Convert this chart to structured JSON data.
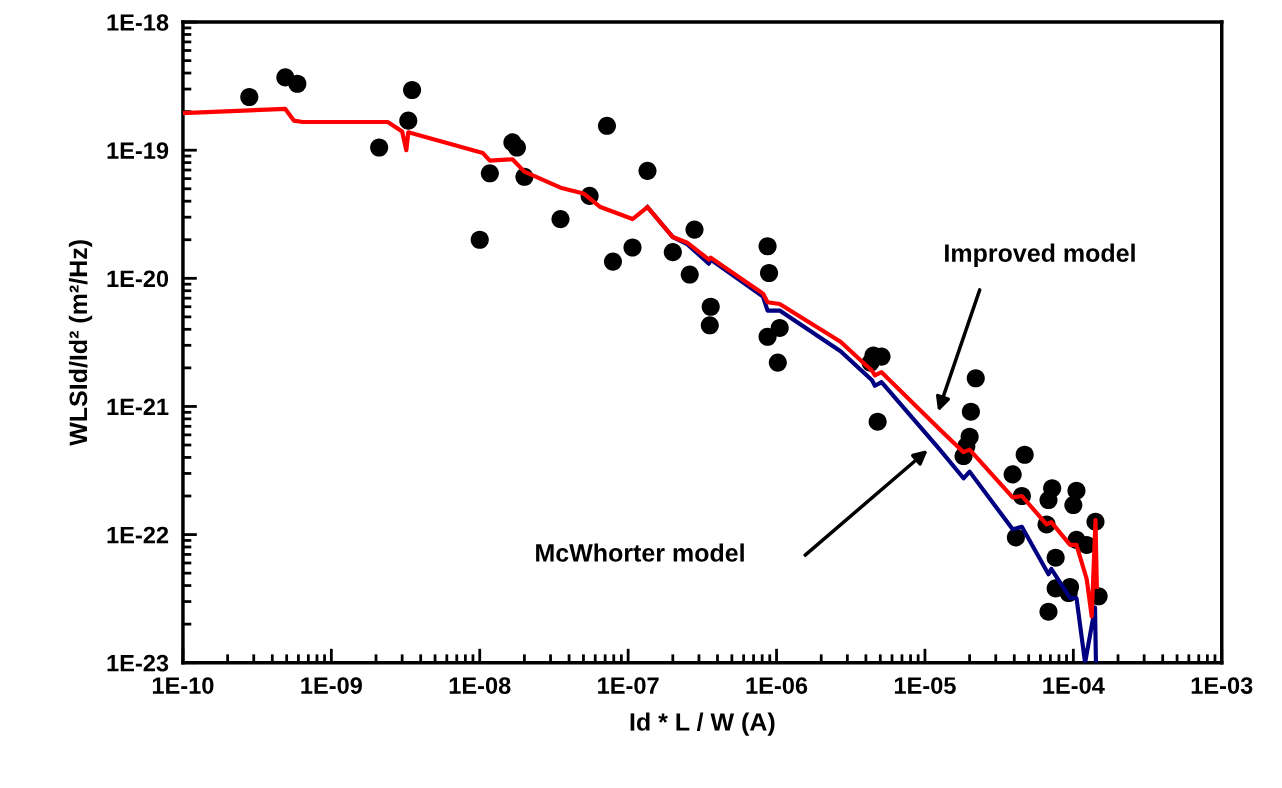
{
  "chart_data": {
    "type": "line",
    "xlabel": "Id * L / W (A)",
    "ylabel": "WLSId/Id² (m²/Hz)",
    "log": "xy",
    "grid": false,
    "legend": false,
    "xlim": [
      1e-10,
      0.001
    ],
    "ylim": [
      1e-23,
      1e-18
    ],
    "xticks": [
      {
        "value": 1e-10,
        "label": "1E-10"
      },
      {
        "value": 1e-09,
        "label": "1E-09"
      },
      {
        "value": 1e-08,
        "label": "1E-08"
      },
      {
        "value": 1e-07,
        "label": "1E-07"
      },
      {
        "value": 1e-06,
        "label": "1E-06"
      },
      {
        "value": 1e-05,
        "label": "1E-05"
      },
      {
        "value": 0.0001,
        "label": "1E-04"
      },
      {
        "value": 0.001,
        "label": "1E-03"
      }
    ],
    "yticks": [
      {
        "value": 1e-23,
        "label": "1E-23"
      },
      {
        "value": 1e-22,
        "label": "1E-22"
      },
      {
        "value": 1e-21,
        "label": "1E-21"
      },
      {
        "value": 1e-20,
        "label": "1E-20"
      },
      {
        "value": 1e-19,
        "label": "1E-19"
      },
      {
        "value": 1e-18,
        "label": "1E-18"
      }
    ],
    "series": [
      {
        "type": "scatter",
        "color": "#000000",
        "marker": "circle",
        "x": [
          2.8e-10,
          4.9e-10,
          5.9e-10,
          2.1e-09,
          3.3e-09,
          3.5e-09,
          1e-08,
          1.17e-08,
          1.66e-08,
          1.78e-08,
          2e-08,
          3.5e-08,
          5.5e-08,
          7.2e-08,
          7.9e-08,
          1.07e-07,
          1.35e-07,
          2e-07,
          2.6e-07,
          2.8e-07,
          3.6e-07,
          3.55e-07,
          8.7e-07,
          8.9e-07,
          8.7e-07,
          1.05e-06,
          1.02e-06,
          4.3e-06,
          4.5e-06,
          5.1e-06,
          4.8e-06,
          2.2e-05,
          2.04e-05,
          2e-05,
          1.9e-05,
          1.82e-05,
          4.7e-05,
          3.9e-05,
          4.5e-05,
          4.1e-05,
          7.2e-05,
          6.8e-05,
          6.6e-05,
          7.6e-05,
          7.6e-05,
          6.8e-05,
          9.5e-05,
          9.3e-05,
          0.000105,
          0.0001,
          0.000105,
          0.000123,
          0.000141,
          0.000148
        ],
        "values": [
          2.6e-19,
          3.7e-19,
          3.3e-19,
          1.05e-19,
          1.7e-19,
          2.95e-19,
          2e-20,
          6.6e-20,
          1.15e-19,
          1.05e-19,
          6.2e-20,
          2.9e-20,
          4.4e-20,
          1.55e-19,
          1.35e-20,
          1.74e-20,
          6.9e-20,
          1.6e-20,
          1.07e-20,
          2.4e-20,
          6e-21,
          4.3e-21,
          1.78e-20,
          1.1e-20,
          3.5e-21,
          4.1e-21,
          2.2e-21,
          2.2e-21,
          2.5e-21,
          2.45e-21,
          7.6e-22,
          1.66e-21,
          9.1e-22,
          5.8e-22,
          4.9e-22,
          4.1e-22,
          4.2e-22,
          2.95e-22,
          2e-22,
          9.5e-23,
          2.3e-22,
          1.86e-22,
          1.2e-22,
          6.6e-23,
          3.8e-23,
          2.5e-23,
          3.9e-23,
          3.5e-23,
          2.2e-22,
          1.7e-22,
          9.1e-23,
          8.3e-23,
          1.26e-22,
          3.3e-23
        ]
      },
      {
        "color": "#000080",
        "marker": "none",
        "line_style": "solid",
        "x": [
          1.35e-07,
          2e-07,
          2.5e-07,
          3.5e-07,
          3.6e-07,
          8.1e-07,
          8.7e-07,
          1.05e-06,
          2.7e-06,
          4.4e-06,
          4.6e-06,
          5.1e-06,
          1.26e-05,
          1.82e-05,
          2e-05,
          3.9e-05,
          4.5e-05,
          6.8e-05,
          7.1e-05,
          9.5e-05,
          0.000105,
          0.00012,
          0.00014,
          0.000142
        ],
        "values": [
          3.6e-20,
          2.1e-20,
          1.85e-20,
          1.3e-20,
          1.4e-20,
          7.2e-21,
          5.6e-21,
          5.6e-21,
          2.7e-21,
          1.6e-21,
          1.45e-21,
          1.55e-21,
          4.6e-22,
          2.75e-22,
          3.1e-22,
          1.1e-22,
          1.15e-22,
          4.9e-23,
          5.4e-23,
          3.2e-23,
          3.2e-23,
          1e-23,
          2.7e-23,
          1e-23
        ]
      },
      {
        "color": "#ff0000",
        "marker": "none",
        "line_style": "solid",
        "x": [
          1e-10,
          4.9e-10,
          5.6e-10,
          6.4e-10,
          2.4e-09,
          3e-09,
          3.2e-09,
          3.3e-09,
          1.05e-08,
          1.17e-08,
          1.66e-08,
          2e-08,
          3.5e-08,
          5e-08,
          6.5e-08,
          1.07e-07,
          1.35e-07,
          2e-07,
          2.5e-07,
          3.5e-07,
          3.6e-07,
          8.1e-07,
          8.7e-07,
          1.05e-06,
          2.7e-06,
          4.4e-06,
          4.6e-06,
          5.1e-06,
          1.26e-05,
          1.82e-05,
          2e-05,
          3.9e-05,
          4.5e-05,
          6.6e-05,
          7.1e-05,
          9.5e-05,
          0.000105,
          0.000123,
          0.000133,
          0.000141,
          0.000144
        ],
        "values": [
          1.95e-19,
          2.1e-19,
          1.7e-19,
          1.66e-19,
          1.66e-19,
          1.4e-19,
          1e-19,
          1.38e-19,
          9.5e-20,
          8.3e-20,
          8.5e-20,
          6.8e-20,
          5.1e-20,
          4.6e-20,
          3.6e-20,
          2.9e-20,
          3.6e-20,
          2.1e-20,
          1.9e-20,
          1.4e-20,
          1.45e-20,
          7.6e-21,
          6.5e-21,
          6.3e-21,
          3.2e-21,
          1.9e-21,
          1.75e-21,
          1.85e-21,
          6.6e-22,
          4.4e-22,
          4.6e-22,
          1.95e-22,
          2e-22,
          1.2e-22,
          1.25e-22,
          8.3e-23,
          8.3e-23,
          4.5e-23,
          2.3e-23,
          1.3e-22,
          3.9e-23
        ]
      }
    ],
    "annotations": [
      "Improved model",
      "McWhorter model"
    ]
  }
}
